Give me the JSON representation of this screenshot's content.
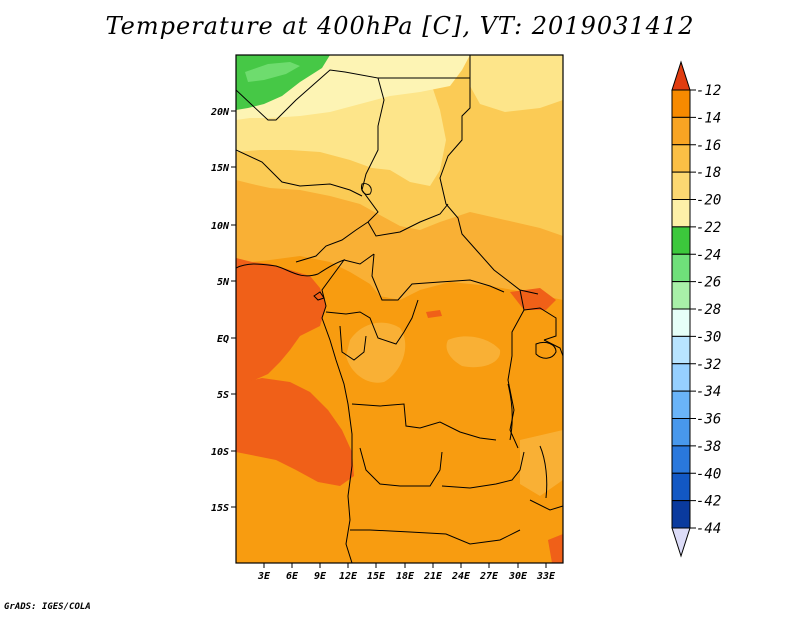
{
  "title": "Temperature at 400hPa [C], VT: 2019031412",
  "footer": "GrADS: IGES/COLA",
  "axes": {
    "lat_labels": [
      "20N",
      "15N",
      "10N",
      "5N",
      "EQ",
      "5S",
      "10S",
      "15S"
    ],
    "lon_labels": [
      "3E",
      "6E",
      "9E",
      "12E",
      "15E",
      "18E",
      "21E",
      "24E",
      "27E",
      "30E",
      "33E"
    ]
  },
  "colorbar": {
    "labels": [
      "-12",
      "-14",
      "-16",
      "-18",
      "-20",
      "-22",
      "-24",
      "-26",
      "-28",
      "-30",
      "-32",
      "-34",
      "-36",
      "-38",
      "-40",
      "-42",
      "-44"
    ],
    "colors": [
      "#f04a10",
      "#f78a00",
      "#f8a423",
      "#fbbf45",
      "#fcd872",
      "#fdf0a8",
      "#3cc83c",
      "#6fe07a",
      "#a8f0a8",
      "#e6fff8",
      "#b8e4ff",
      "#96d0ff",
      "#6ab4f8",
      "#4898ec",
      "#2a78dc",
      "#1258c4",
      "#0a3a9e",
      "#0a1a6e"
    ],
    "top_arrow_color": "#e03c10",
    "bottom_arrow_color": "#dcdcf8"
  },
  "map_colors": {
    "c12": "#f06018",
    "c14": "#f89c10",
    "c16": "#f9b035",
    "c18": "#fbcb55",
    "c20": "#fde58a",
    "c22": "#fdf4b4",
    "c24": "#46c846",
    "c26": "#6edc6e"
  }
}
